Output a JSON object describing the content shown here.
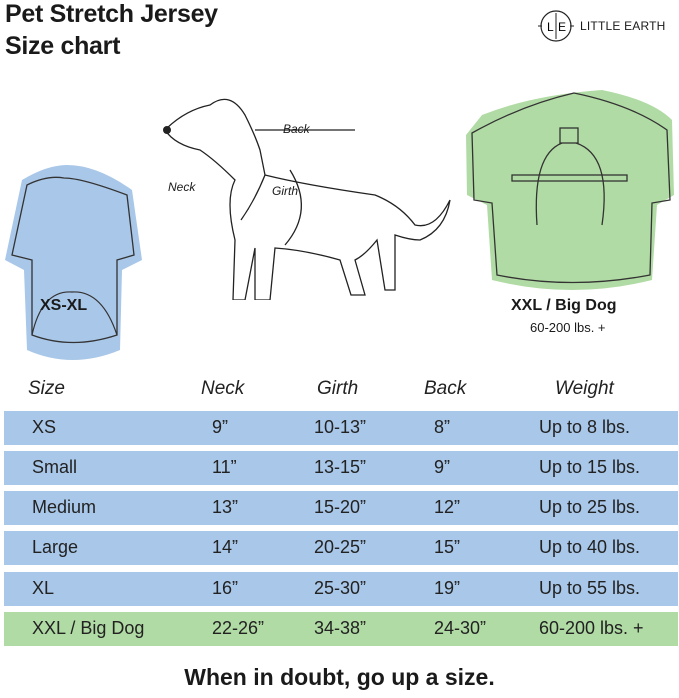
{
  "title_line1": "Pet Stretch Jersey",
  "title_line2": "Size chart",
  "brand": {
    "monogram_left": "L",
    "monogram_right": "E",
    "name": "LITTLE EARTH"
  },
  "illustrations": {
    "small_jersey_label": "XS-XL",
    "big_jersey_label": "XXL / Big Dog",
    "big_jersey_sub": "60-200 lbs. +",
    "dog_labels": {
      "back": "Back",
      "neck": "Neck",
      "girth": "Girth"
    }
  },
  "colors": {
    "blue": "#a9c7e8",
    "green": "#b1dba4"
  },
  "table": {
    "headers": [
      "Size",
      "Neck",
      "Girth",
      "Back",
      "Weight"
    ],
    "rows": [
      [
        "XS",
        "9”",
        "10-13”",
        "8”",
        "Up to 8 lbs."
      ],
      [
        "Small",
        "11”",
        "13-15”",
        "9”",
        "Up to 15 lbs."
      ],
      [
        "Medium",
        "13”",
        "15-20”",
        "12”",
        "Up to 25 lbs."
      ],
      [
        "Large",
        "14”",
        "20-25”",
        "15”",
        "Up to 40 lbs."
      ],
      [
        "XL",
        "16”",
        "25-30”",
        "19”",
        "Up to 55 lbs."
      ],
      [
        "XXL / Big Dog",
        "22-26”",
        "34-38”",
        "24-30”",
        "60-200 lbs. +"
      ]
    ]
  },
  "footer": "When in doubt, go up a size."
}
